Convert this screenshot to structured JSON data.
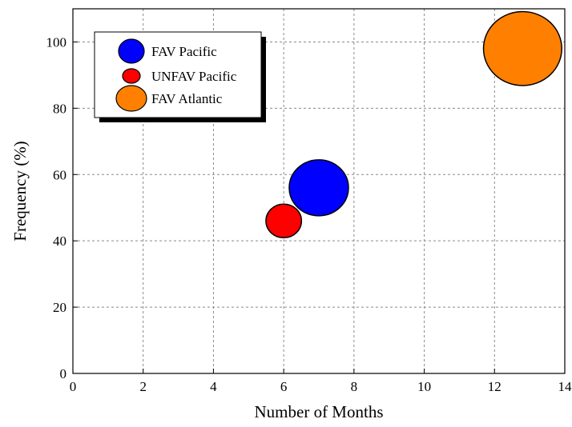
{
  "chart_data": {
    "type": "bubble",
    "xlabel": "Number of Months",
    "ylabel": "Frequency (%)",
    "xlim": [
      0,
      14
    ],
    "ylim": [
      0,
      110
    ],
    "xticks": [
      "0",
      "2",
      "4",
      "6",
      "8",
      "10",
      "12",
      "14"
    ],
    "yticks": [
      "0",
      "20",
      "40",
      "60",
      "80",
      "100"
    ],
    "grid": true,
    "legend_position": "top-left",
    "series": [
      {
        "name": "FAV Pacific",
        "color": "#0000FF",
        "x": 7.0,
        "y": 56,
        "size": 1.0
      },
      {
        "name": "UNFAV Pacific",
        "color": "#FF0000",
        "x": 6.0,
        "y": 46,
        "size": 0.6
      },
      {
        "name": "FAV Atlantic",
        "color": "#FF8000",
        "x": 12.8,
        "y": 98,
        "size": 1.32
      }
    ]
  }
}
